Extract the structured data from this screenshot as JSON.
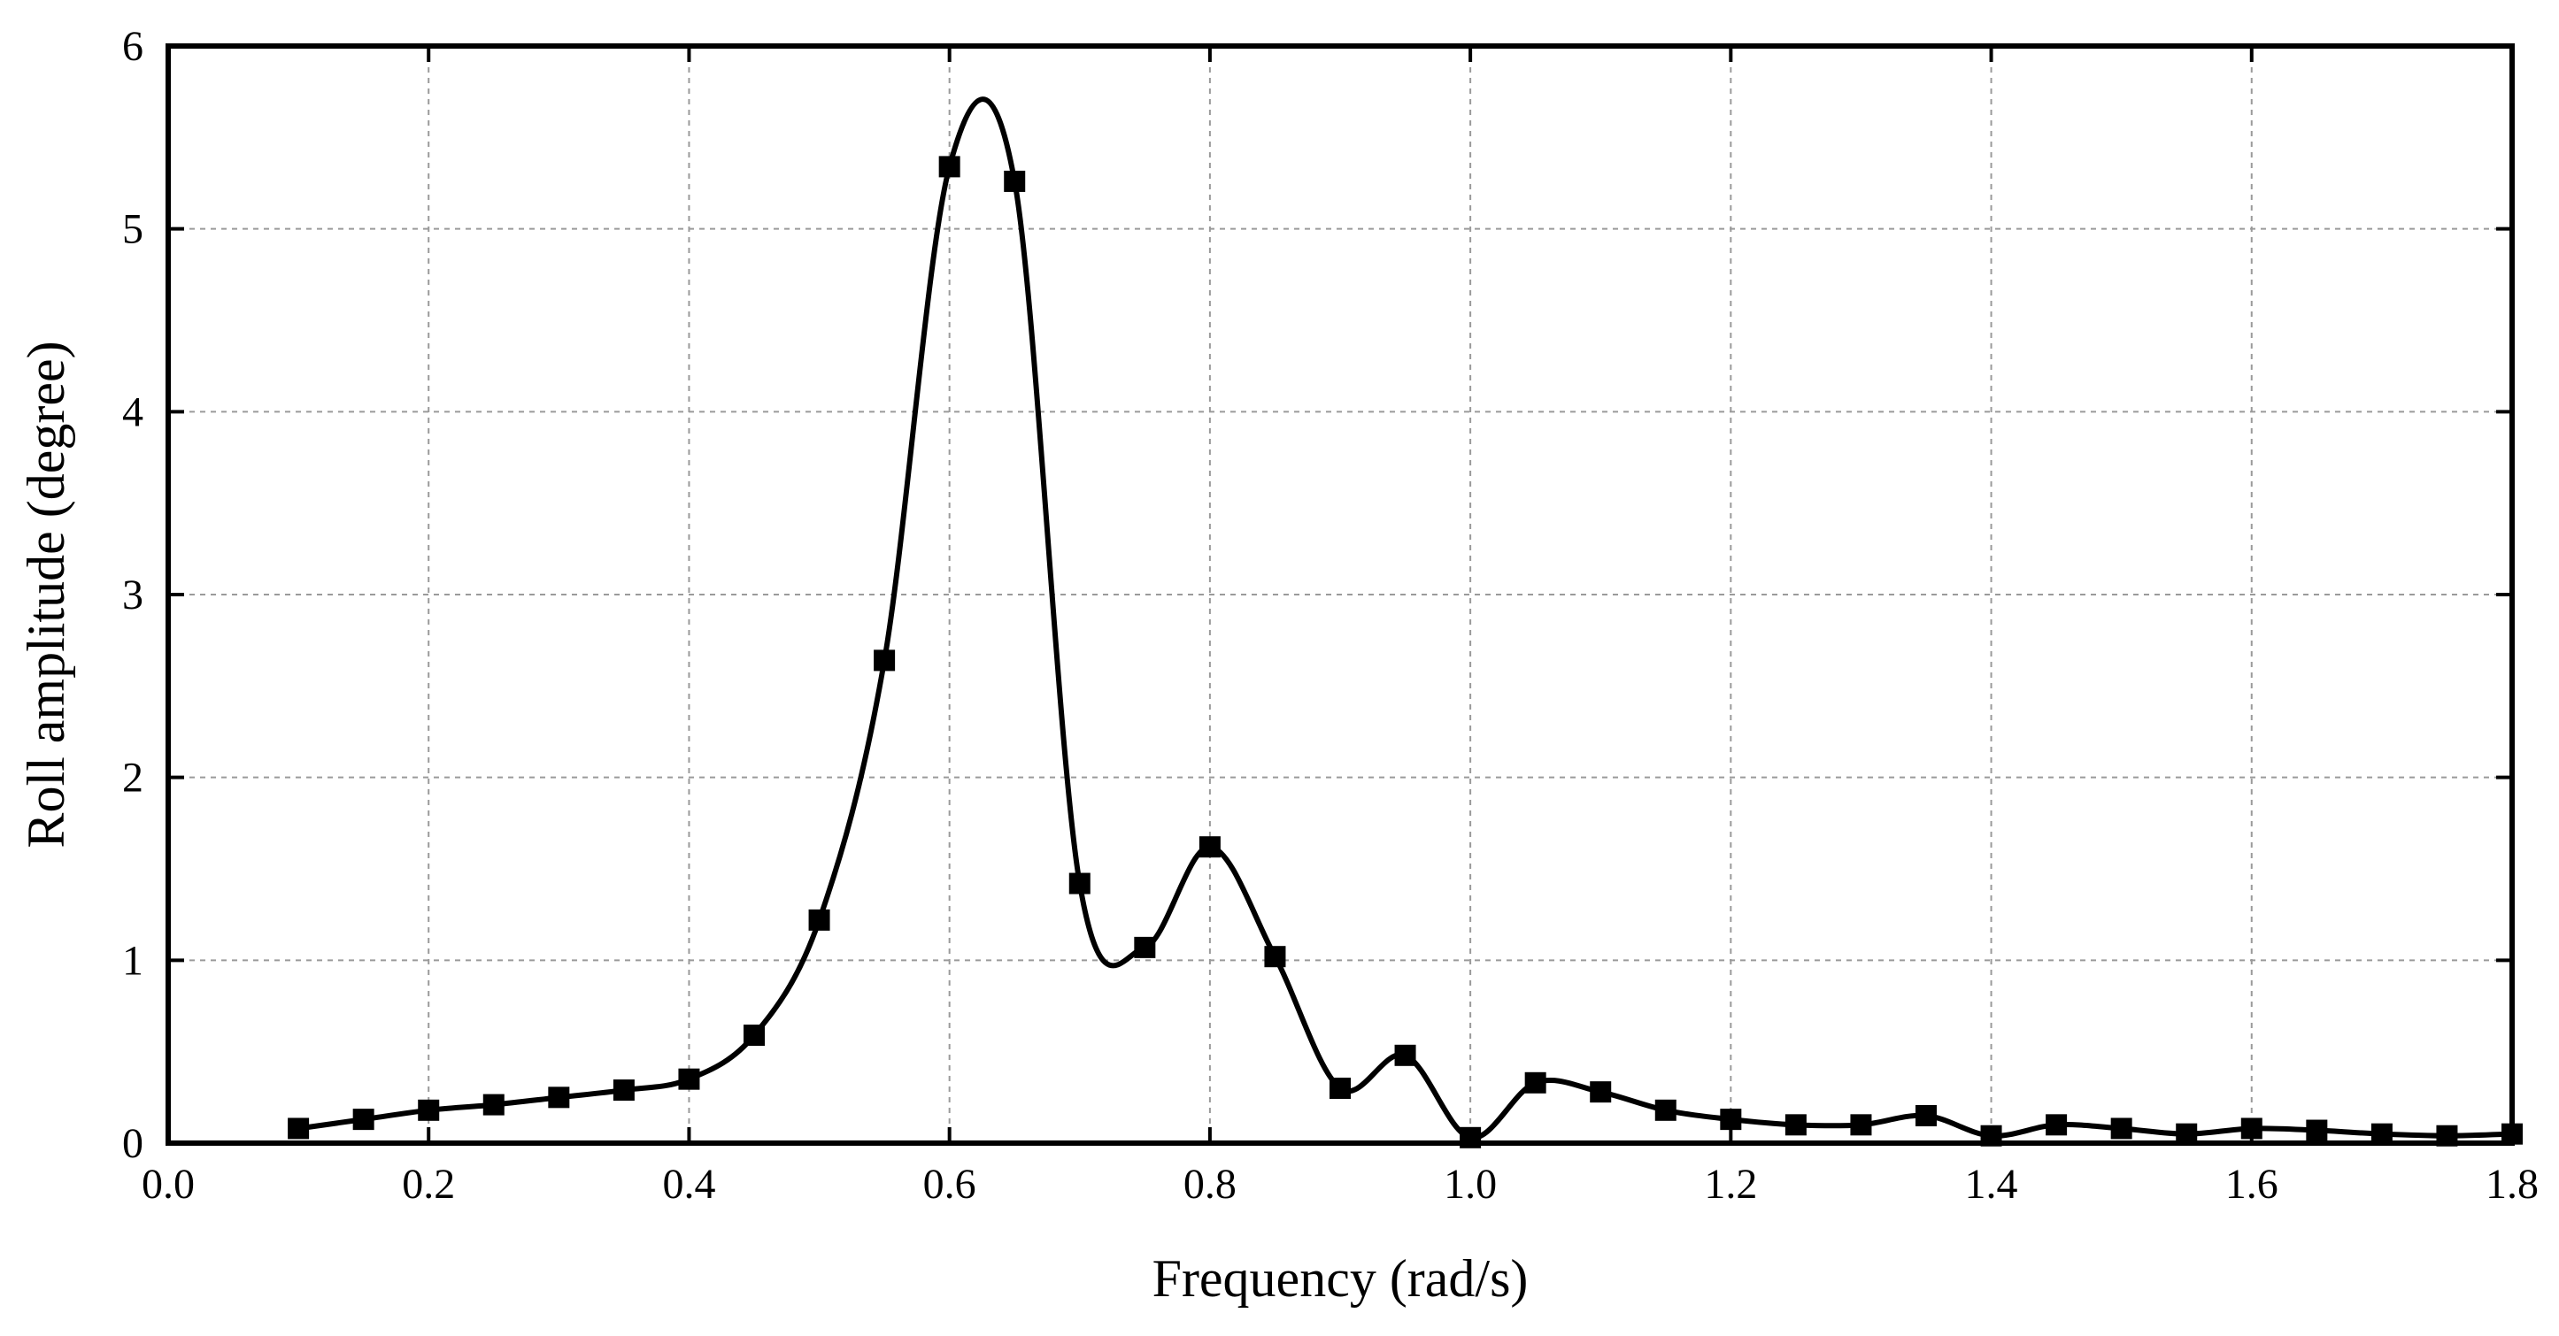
{
  "chart_data": {
    "type": "line",
    "title": "",
    "xlabel": "Frequency (rad/s)",
    "ylabel": "Roll amplitude (degree)",
    "xlim": [
      0.0,
      1.8
    ],
    "ylim": [
      0,
      6
    ],
    "xticks": [
      "0.0",
      "0.2",
      "0.4",
      "0.6",
      "0.8",
      "1.0",
      "1.2",
      "1.4",
      "1.6",
      "1.8"
    ],
    "yticks": [
      "0",
      "1",
      "2",
      "3",
      "4",
      "5",
      "6"
    ],
    "grid": true,
    "legend": "none",
    "series": [
      {
        "marker": "square",
        "line_style": "smooth",
        "color": "#000000",
        "x": [
          0.1,
          0.15,
          0.2,
          0.25,
          0.3,
          0.35,
          0.4,
          0.45,
          0.5,
          0.55,
          0.6,
          0.65,
          0.7,
          0.75,
          0.8,
          0.85,
          0.9,
          0.95,
          1.0,
          1.05,
          1.1,
          1.15,
          1.2,
          1.25,
          1.3,
          1.35,
          1.4,
          1.45,
          1.5,
          1.55,
          1.6,
          1.65,
          1.7,
          1.75,
          1.8
        ],
        "y": [
          0.08,
          0.13,
          0.18,
          0.21,
          0.25,
          0.29,
          0.35,
          0.59,
          1.22,
          2.64,
          5.34,
          5.26,
          1.42,
          1.07,
          1.62,
          1.02,
          0.3,
          0.48,
          0.03,
          0.33,
          0.28,
          0.18,
          0.13,
          0.1,
          0.1,
          0.15,
          0.04,
          0.1,
          0.08,
          0.05,
          0.08,
          0.07,
          0.05,
          0.04,
          0.05
        ]
      }
    ]
  }
}
